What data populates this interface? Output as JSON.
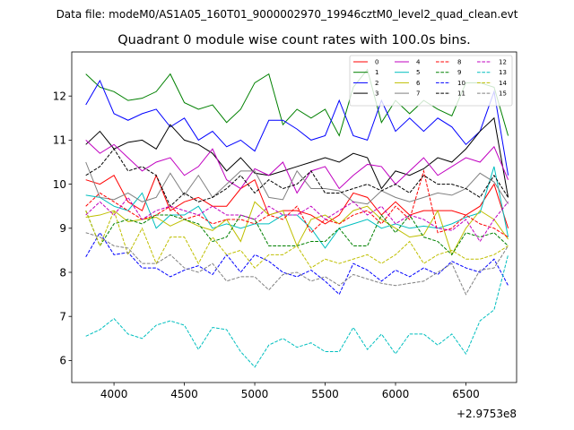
{
  "chart_data": {
    "type": "line",
    "suptitle": "Data file: modeM0/AS1A05_160T01_9000002970_19946cztM0_level2_quad_clean.evt",
    "title": "Quadrant 0 module wise count rates with 100.0s bins.",
    "xlabel": "",
    "ylabel": "",
    "x_offset_label": "+2.9753e8",
    "xlim": [
      3700,
      6860
    ],
    "ylim": [
      5.5,
      13.0
    ],
    "xticks": [
      4000,
      4500,
      5000,
      5500,
      6000,
      6500
    ],
    "yticks": [
      6,
      7,
      8,
      9,
      10,
      11,
      12
    ],
    "x": [
      3800,
      3900,
      4000,
      4100,
      4200,
      4300,
      4400,
      4500,
      4600,
      4700,
      4800,
      4900,
      5000,
      5100,
      5200,
      5300,
      5400,
      5500,
      5600,
      5700,
      5800,
      5900,
      6000,
      6100,
      6200,
      6300,
      6400,
      6500,
      6600,
      6700,
      6800
    ],
    "series": [
      {
        "name": "0",
        "color": "#ff0000",
        "dash": "solid",
        "values": [
          10.1,
          10.0,
          10.2,
          9.6,
          9.4,
          10.2,
          9.4,
          9.6,
          9.7,
          9.5,
          9.5,
          9.9,
          10.1,
          9.3,
          9.4,
          9.4,
          9.3,
          9.1,
          9.3,
          9.8,
          9.7,
          9.3,
          9.6,
          9.3,
          9.4,
          9.4,
          9.4,
          9.3,
          9.5,
          10.0,
          9.0
        ]
      },
      {
        "name": "1",
        "color": "#008000",
        "dash": "solid",
        "values": [
          12.5,
          12.2,
          12.1,
          11.9,
          11.95,
          12.1,
          12.5,
          11.85,
          11.7,
          11.8,
          11.4,
          11.7,
          12.3,
          12.5,
          11.35,
          11.7,
          11.5,
          11.7,
          11.1,
          12.2,
          12.6,
          11.4,
          11.9,
          11.6,
          11.9,
          11.7,
          11.55,
          12.3,
          12.3,
          12.2,
          11.1
        ]
      },
      {
        "name": "2",
        "color": "#0000ff",
        "dash": "solid",
        "values": [
          11.8,
          12.35,
          11.6,
          11.45,
          11.6,
          11.7,
          11.3,
          11.5,
          11.0,
          11.2,
          10.85,
          11.0,
          10.75,
          11.45,
          11.45,
          11.25,
          11.0,
          11.1,
          11.9,
          11.1,
          11.0,
          11.9,
          11.2,
          11.5,
          11.2,
          11.5,
          11.3,
          10.9,
          11.2,
          12.1,
          10.2
        ]
      },
      {
        "name": "3",
        "color": "#000000",
        "dash": "solid",
        "values": [
          10.9,
          11.2,
          10.8,
          10.95,
          11.0,
          10.8,
          11.35,
          11.0,
          10.9,
          10.7,
          10.3,
          10.6,
          10.25,
          10.2,
          10.3,
          10.4,
          10.5,
          10.6,
          10.5,
          10.7,
          10.6,
          9.9,
          10.3,
          10.2,
          10.35,
          10.6,
          10.5,
          10.8,
          11.2,
          11.5,
          9.7
        ]
      },
      {
        "name": "4",
        "color": "#c000c0",
        "dash": "solid",
        "values": [
          11.0,
          10.7,
          10.9,
          10.6,
          10.3,
          10.5,
          10.6,
          10.2,
          10.4,
          10.8,
          10.1,
          9.9,
          10.35,
          10.2,
          10.5,
          9.8,
          10.3,
          10.4,
          9.9,
          10.2,
          10.45,
          10.4,
          10.0,
          10.3,
          10.6,
          10.2,
          10.4,
          10.6,
          10.5,
          10.85,
          10.1
        ]
      },
      {
        "name": "5",
        "color": "#00bfbf",
        "dash": "solid",
        "values": [
          9.75,
          9.7,
          9.5,
          9.4,
          9.8,
          9.0,
          9.3,
          9.3,
          9.5,
          9.0,
          9.1,
          9.0,
          9.1,
          9.1,
          9.3,
          9.3,
          9.0,
          8.55,
          9.0,
          9.1,
          9.2,
          9.0,
          9.1,
          9.0,
          9.05,
          9.0,
          9.1,
          9.25,
          9.35,
          10.4,
          8.8
        ]
      },
      {
        "name": "6",
        "color": "#bfbf00",
        "dash": "solid",
        "values": [
          9.25,
          9.3,
          9.4,
          9.15,
          9.2,
          9.25,
          9.05,
          9.2,
          9.05,
          8.95,
          9.2,
          8.7,
          9.6,
          9.3,
          9.4,
          8.6,
          9.2,
          9.3,
          9.1,
          9.4,
          9.5,
          9.2,
          9.0,
          8.8,
          8.85,
          9.4,
          8.4,
          9.0,
          9.4,
          9.2,
          8.75
        ]
      },
      {
        "name": "7",
        "color": "#808080",
        "dash": "solid",
        "values": [
          10.5,
          9.7,
          9.65,
          9.8,
          9.6,
          9.7,
          10.25,
          9.75,
          10.2,
          9.7,
          10.0,
          10.3,
          10.3,
          9.7,
          9.65,
          10.3,
          9.9,
          9.9,
          9.85,
          9.6,
          9.55,
          9.85,
          9.7,
          9.6,
          9.7,
          9.8,
          9.75,
          9.9,
          10.25,
          10.05,
          9.55
        ]
      },
      {
        "name": "8",
        "color": "#ff0000",
        "dash": "dashed",
        "values": [
          9.5,
          9.8,
          9.6,
          9.4,
          9.2,
          9.3,
          9.5,
          9.2,
          9.3,
          9.1,
          9.2,
          9.2,
          9.1,
          9.3,
          9.2,
          9.5,
          8.9,
          9.2,
          9.1,
          9.3,
          9.4,
          9.1,
          9.5,
          9.2,
          10.3,
          8.9,
          9.0,
          9.3,
          9.1,
          9.0,
          8.8
        ]
      },
      {
        "name": "9",
        "color": "#008000",
        "dash": "dashed",
        "values": [
          9.4,
          8.6,
          9.1,
          9.2,
          9.1,
          9.3,
          9.3,
          9.2,
          9.1,
          8.7,
          8.8,
          9.3,
          9.2,
          8.6,
          8.6,
          8.6,
          8.7,
          8.7,
          9.0,
          8.6,
          8.6,
          9.3,
          8.9,
          9.3,
          8.8,
          8.7,
          8.4,
          8.9,
          8.8,
          8.9,
          8.6
        ]
      },
      {
        "name": "10",
        "color": "#0000ff",
        "dash": "dashed",
        "values": [
          8.35,
          8.9,
          8.4,
          8.45,
          8.1,
          8.1,
          7.9,
          8.05,
          8.15,
          7.95,
          8.4,
          8.0,
          8.4,
          8.25,
          8.0,
          7.9,
          8.05,
          7.8,
          7.5,
          8.2,
          8.05,
          7.8,
          8.05,
          7.9,
          8.1,
          7.95,
          8.25,
          8.1,
          8.0,
          8.3,
          7.7
        ]
      },
      {
        "name": "11",
        "color": "#000000",
        "dash": "dashed",
        "values": [
          10.2,
          10.4,
          10.8,
          10.3,
          10.4,
          10.2,
          9.5,
          9.8,
          9.6,
          9.7,
          9.9,
          10.2,
          9.8,
          10.1,
          9.9,
          10.0,
          10.3,
          9.8,
          9.8,
          9.9,
          10.0,
          9.85,
          10.0,
          9.8,
          10.2,
          10.0,
          10.0,
          9.9,
          9.7,
          10.2,
          9.7
        ]
      },
      {
        "name": "12",
        "color": "#c000c0",
        "dash": "dashed",
        "values": [
          9.3,
          9.6,
          9.3,
          9.7,
          9.2,
          9.4,
          9.5,
          9.4,
          9.3,
          9.5,
          9.3,
          9.3,
          9.2,
          9.5,
          9.3,
          9.3,
          9.5,
          9.2,
          9.4,
          9.6,
          9.3,
          9.5,
          9.1,
          9.3,
          9.2,
          9.0,
          8.95,
          9.2,
          8.7,
          9.2,
          9.6
        ]
      },
      {
        "name": "13",
        "color": "#00bfbf",
        "dash": "dashed",
        "values": [
          6.55,
          6.7,
          6.95,
          6.6,
          6.5,
          6.8,
          6.9,
          6.8,
          6.25,
          6.75,
          6.7,
          6.2,
          5.85,
          6.35,
          6.5,
          6.3,
          6.4,
          6.2,
          6.2,
          6.75,
          6.25,
          6.6,
          6.15,
          6.6,
          6.6,
          6.35,
          6.6,
          6.15,
          6.9,
          7.15,
          8.4
        ]
      },
      {
        "name": "14",
        "color": "#bfbf00",
        "dash": "dashed",
        "values": [
          9.4,
          8.6,
          9.4,
          8.4,
          9.0,
          8.2,
          8.8,
          8.8,
          8.2,
          8.8,
          8.4,
          8.5,
          8.1,
          8.4,
          8.4,
          8.6,
          8.1,
          8.3,
          8.2,
          8.3,
          8.4,
          8.2,
          8.4,
          8.7,
          8.2,
          8.4,
          8.5,
          8.3,
          8.3,
          8.4,
          8.6
        ]
      },
      {
        "name": "15",
        "color": "#808080",
        "dash": "dashed",
        "values": [
          8.9,
          8.8,
          8.6,
          8.55,
          8.2,
          8.2,
          8.4,
          8.1,
          8.0,
          8.2,
          7.8,
          7.9,
          7.9,
          7.6,
          7.95,
          8.0,
          7.8,
          7.9,
          7.7,
          7.95,
          7.85,
          7.75,
          7.7,
          7.75,
          7.8,
          8.0,
          8.2,
          7.5,
          8.05,
          8.1,
          8.6
        ]
      }
    ]
  }
}
